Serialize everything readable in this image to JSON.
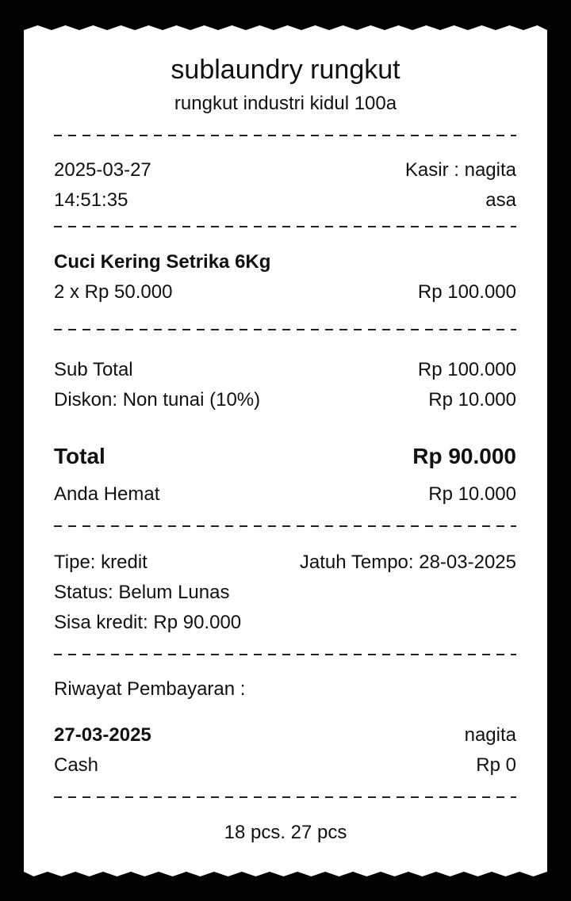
{
  "store": {
    "name": "sublaundry rungkut",
    "address": "rungkut industri kidul 100a"
  },
  "meta": {
    "date": "2025-03-27",
    "time": "14:51:35",
    "cashier": "Kasir : nagita",
    "cashier_cont": "asa"
  },
  "item": {
    "name": "Cuci Kering Setrika 6Kg",
    "qty_price": "2 x Rp 50.000",
    "amount": "Rp 100.000"
  },
  "summary": {
    "subtotal_label": "Sub Total",
    "subtotal": "Rp 100.000",
    "discount_label": "Diskon: Non tunai (10%)",
    "discount": "Rp 10.000",
    "total_label": "Total",
    "total": "Rp 90.000",
    "saved_label": "Anda Hemat",
    "saved": "Rp 10.000"
  },
  "payment": {
    "type": "Tipe: kredit",
    "due": "Jatuh Tempo: 28-03-2025",
    "status": "Status: Belum Lunas",
    "remaining": "Sisa kredit: Rp 90.000"
  },
  "history": {
    "label": "Riwayat Pembayaran :",
    "date": "27-03-2025",
    "user": "nagita",
    "method": "Cash",
    "amount": "Rp 0"
  },
  "footer": "18 pcs. 27 pcs",
  "colors": {
    "paper": "#ffffff",
    "background": "#000000",
    "text": "#111111"
  }
}
